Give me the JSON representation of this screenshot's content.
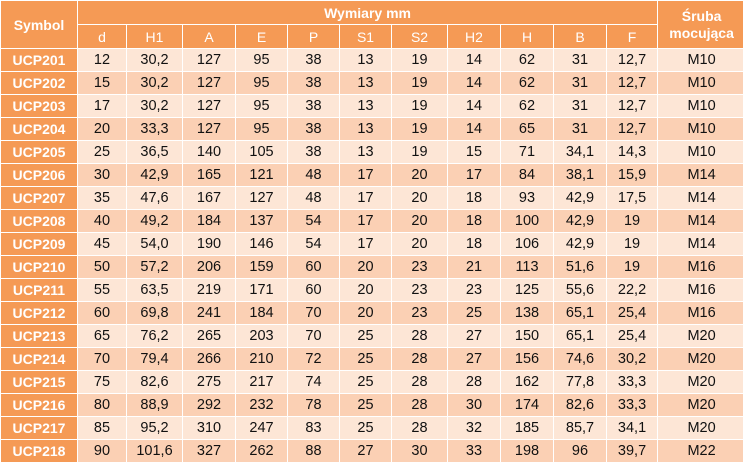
{
  "header": {
    "symbol": "Symbol",
    "group": "Wymiary mm",
    "bolt_line1": "Śruba",
    "bolt_line2": "mocująca",
    "columns": [
      "d",
      "H1",
      "A",
      "E",
      "P",
      "S1",
      "S2",
      "H2",
      "H",
      "B",
      "F"
    ]
  },
  "rows": [
    {
      "symbol": "UCP201",
      "values": [
        "12",
        "30,2",
        "127",
        "95",
        "38",
        "13",
        "19",
        "14",
        "62",
        "31",
        "12,7"
      ],
      "bolt": "M10"
    },
    {
      "symbol": "UCP202",
      "values": [
        "15",
        "30,2",
        "127",
        "95",
        "38",
        "13",
        "19",
        "14",
        "62",
        "31",
        "12,7"
      ],
      "bolt": "M10"
    },
    {
      "symbol": "UCP203",
      "values": [
        "17",
        "30,2",
        "127",
        "95",
        "38",
        "13",
        "19",
        "14",
        "62",
        "31",
        "12,7"
      ],
      "bolt": "M10"
    },
    {
      "symbol": "UCP204",
      "values": [
        "20",
        "33,3",
        "127",
        "95",
        "38",
        "13",
        "19",
        "14",
        "65",
        "31",
        "12,7"
      ],
      "bolt": "M10"
    },
    {
      "symbol": "UCP205",
      "values": [
        "25",
        "36,5",
        "140",
        "105",
        "38",
        "13",
        "19",
        "15",
        "71",
        "34,1",
        "14,3"
      ],
      "bolt": "M10"
    },
    {
      "symbol": "UCP206",
      "values": [
        "30",
        "42,9",
        "165",
        "121",
        "48",
        "17",
        "20",
        "17",
        "84",
        "38,1",
        "15,9"
      ],
      "bolt": "M14"
    },
    {
      "symbol": "UCP207",
      "values": [
        "35",
        "47,6",
        "167",
        "127",
        "48",
        "17",
        "20",
        "18",
        "93",
        "42,9",
        "17,5"
      ],
      "bolt": "M14"
    },
    {
      "symbol": "UCP208",
      "values": [
        "40",
        "49,2",
        "184",
        "137",
        "54",
        "17",
        "20",
        "18",
        "100",
        "42,9",
        "19"
      ],
      "bolt": "M14"
    },
    {
      "symbol": "UCP209",
      "values": [
        "45",
        "54,0",
        "190",
        "146",
        "54",
        "17",
        "20",
        "18",
        "106",
        "42,9",
        "19"
      ],
      "bolt": "M14"
    },
    {
      "symbol": "UCP210",
      "values": [
        "50",
        "57,2",
        "206",
        "159",
        "60",
        "20",
        "23",
        "21",
        "113",
        "51,6",
        "19"
      ],
      "bolt": "M16"
    },
    {
      "symbol": "UCP211",
      "values": [
        "55",
        "63,5",
        "219",
        "171",
        "60",
        "20",
        "23",
        "23",
        "125",
        "55,6",
        "22,2"
      ],
      "bolt": "M16"
    },
    {
      "symbol": "UCP212",
      "values": [
        "60",
        "69,8",
        "241",
        "184",
        "70",
        "20",
        "23",
        "25",
        "138",
        "65,1",
        "25,4"
      ],
      "bolt": "M16"
    },
    {
      "symbol": "UCP213",
      "values": [
        "65",
        "76,2",
        "265",
        "203",
        "70",
        "25",
        "28",
        "27",
        "150",
        "65,1",
        "25,4"
      ],
      "bolt": "M20"
    },
    {
      "symbol": "UCP214",
      "values": [
        "70",
        "79,4",
        "266",
        "210",
        "72",
        "25",
        "28",
        "27",
        "156",
        "74,6",
        "30,2"
      ],
      "bolt": "M20"
    },
    {
      "symbol": "UCP215",
      "values": [
        "75",
        "82,6",
        "275",
        "217",
        "74",
        "25",
        "28",
        "28",
        "162",
        "77,8",
        "33,3"
      ],
      "bolt": "M20"
    },
    {
      "symbol": "UCP216",
      "values": [
        "80",
        "88,9",
        "292",
        "232",
        "78",
        "25",
        "28",
        "30",
        "174",
        "82,6",
        "33,3"
      ],
      "bolt": "M20"
    },
    {
      "symbol": "UCP217",
      "values": [
        "85",
        "95,2",
        "310",
        "247",
        "83",
        "25",
        "28",
        "32",
        "185",
        "85,7",
        "34,1"
      ],
      "bolt": "M20"
    },
    {
      "symbol": "UCP218",
      "values": [
        "90",
        "101,6",
        "327",
        "262",
        "88",
        "27",
        "30",
        "33",
        "198",
        "96",
        "39,7"
      ],
      "bolt": "M22"
    }
  ]
}
